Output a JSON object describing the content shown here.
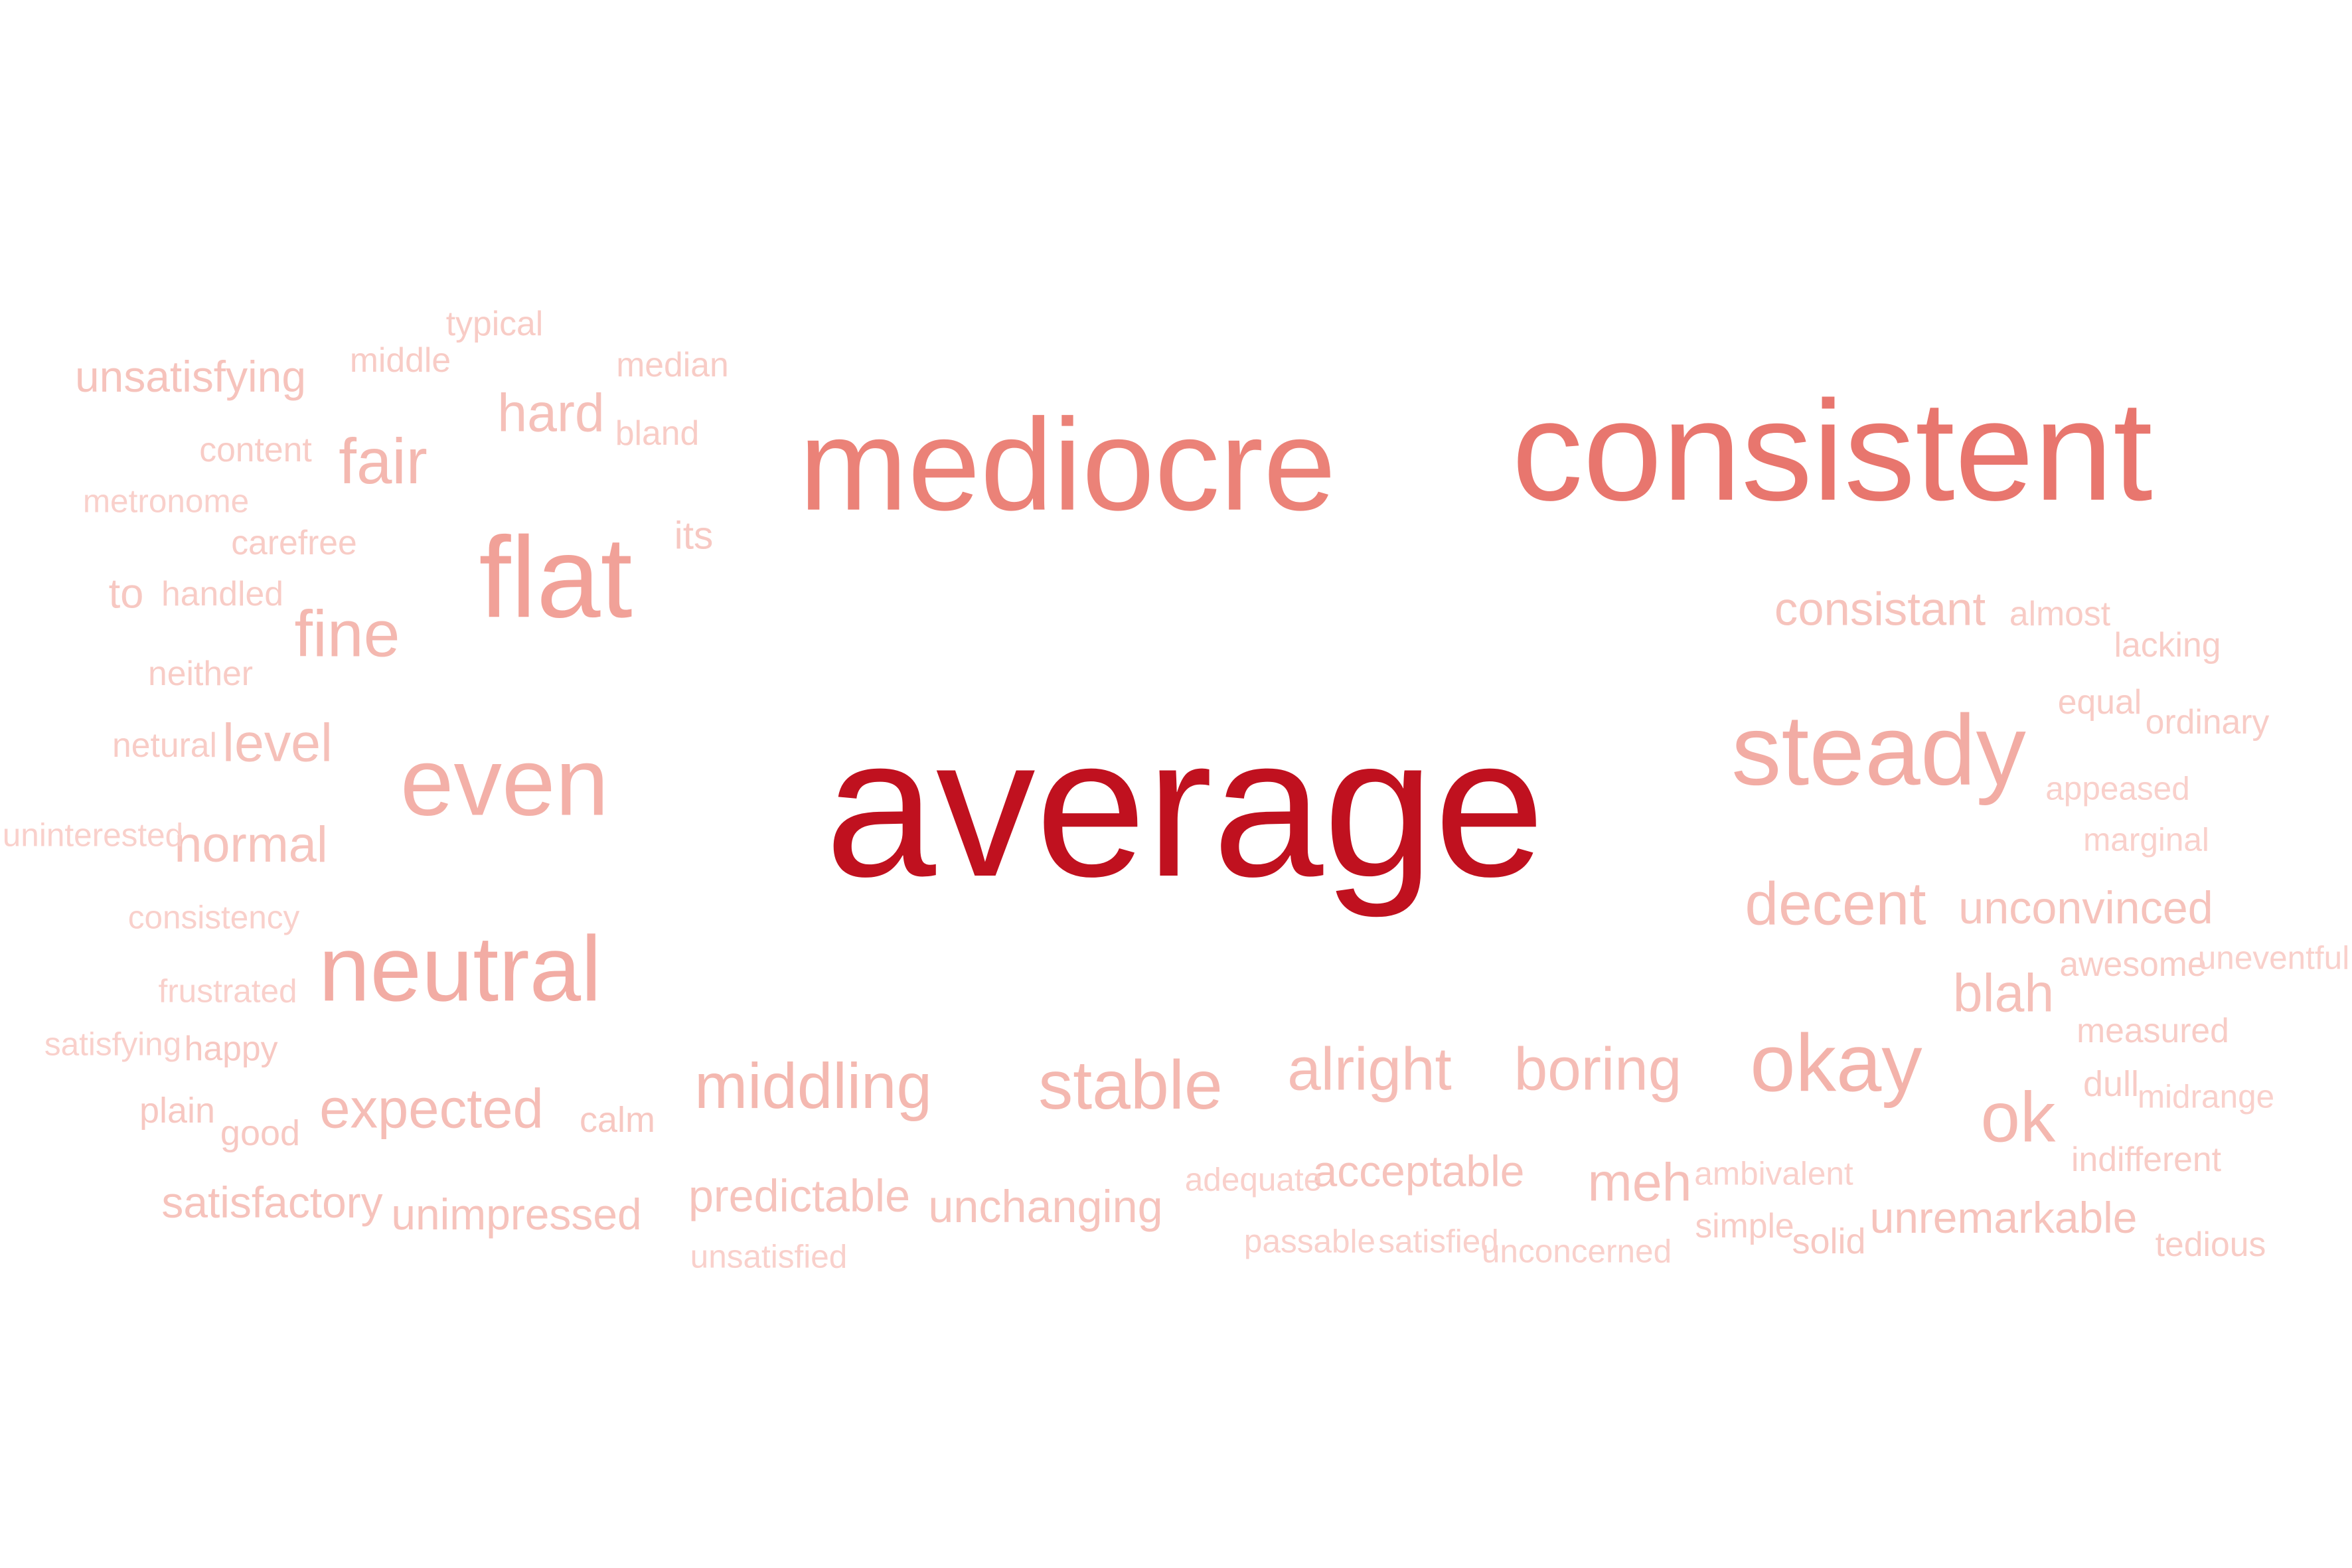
{
  "words": [
    {
      "text": "average",
      "weight": 1.0,
      "color": "#c0111f"
    },
    {
      "text": "consistent",
      "weight": 0.72,
      "color": "#e8766e"
    },
    {
      "text": "mediocre",
      "weight": 0.66,
      "color": "#eb8278"
    },
    {
      "text": "flat",
      "weight": 0.58,
      "color": "#f1a198"
    },
    {
      "text": "steady",
      "weight": 0.5,
      "color": "#f2aca4"
    },
    {
      "text": "even",
      "weight": 0.48,
      "color": "#f3b0a8"
    },
    {
      "text": "neutral",
      "weight": 0.46,
      "color": "#f2aca4"
    },
    {
      "text": "okay",
      "weight": 0.4,
      "color": "#f3b3ab"
    },
    {
      "text": "ok",
      "weight": 0.34,
      "color": "#f4b8b0"
    },
    {
      "text": "stable",
      "weight": 0.33,
      "color": "#f4b8b0"
    },
    {
      "text": "middling",
      "weight": 0.3,
      "color": "#f4b8b0"
    },
    {
      "text": "fine",
      "weight": 0.31,
      "color": "#f4b8b0"
    },
    {
      "text": "fair",
      "weight": 0.3,
      "color": "#f4b8b0"
    },
    {
      "text": "alright",
      "weight": 0.28,
      "color": "#f5bdb6"
    },
    {
      "text": "boring",
      "weight": 0.28,
      "color": "#f5bdb6"
    },
    {
      "text": "decent",
      "weight": 0.28,
      "color": "#f5bdb6"
    },
    {
      "text": "blah",
      "weight": 0.24,
      "color": "#f5c0b9"
    },
    {
      "text": "expected",
      "weight": 0.25,
      "color": "#f5bdb6"
    },
    {
      "text": "level",
      "weight": 0.24,
      "color": "#f5c0b9"
    },
    {
      "text": "hard",
      "weight": 0.24,
      "color": "#f5c0b9"
    },
    {
      "text": "meh",
      "weight": 0.24,
      "color": "#f5c0b9"
    },
    {
      "text": "normal",
      "weight": 0.22,
      "color": "#f6c3bc"
    },
    {
      "text": "consistant",
      "weight": 0.2,
      "color": "#f6c3bc"
    },
    {
      "text": "unconvinced",
      "weight": 0.19,
      "color": "#f6c3bc"
    },
    {
      "text": "unsatisfying",
      "weight": 0.18,
      "color": "#f6c3bc"
    },
    {
      "text": "predictable",
      "weight": 0.19,
      "color": "#f6c3bc"
    },
    {
      "text": "unchanging",
      "weight": 0.19,
      "color": "#f6c3bc"
    },
    {
      "text": "acceptable",
      "weight": 0.18,
      "color": "#f6c3bc"
    },
    {
      "text": "unremarkable",
      "weight": 0.18,
      "color": "#f6c3bc"
    },
    {
      "text": "satisfactory",
      "weight": 0.18,
      "color": "#f6c3bc"
    },
    {
      "text": "unimpressed",
      "weight": 0.18,
      "color": "#f6c3bc"
    },
    {
      "text": "to",
      "weight": 0.17,
      "color": "#f7c8c2"
    },
    {
      "text": "its",
      "weight": 0.15,
      "color": "#f7c8c2"
    },
    {
      "text": "solid",
      "weight": 0.13,
      "color": "#f7c8c2"
    },
    {
      "text": "good",
      "weight": 0.13,
      "color": "#f7c8c2"
    },
    {
      "text": "calm",
      "weight": 0.13,
      "color": "#f7c8c2"
    },
    {
      "text": "plain",
      "weight": 0.13,
      "color": "#f7c8c2"
    },
    {
      "text": "happy",
      "weight": 0.12,
      "color": "#f7c8c2"
    },
    {
      "text": "content",
      "weight": 0.12,
      "color": "#f8ccc6"
    },
    {
      "text": "typical",
      "weight": 0.12,
      "color": "#f8ccc6"
    },
    {
      "text": "median",
      "weight": 0.12,
      "color": "#f8ccc6"
    },
    {
      "text": "middle",
      "weight": 0.12,
      "color": "#f8ccc6"
    },
    {
      "text": "bland",
      "weight": 0.12,
      "color": "#f8ccc6"
    },
    {
      "text": "carefree",
      "weight": 0.12,
      "color": "#f8ccc6"
    },
    {
      "text": "handled",
      "weight": 0.12,
      "color": "#f8ccc6"
    },
    {
      "text": "neither",
      "weight": 0.12,
      "color": "#f8ccc6"
    },
    {
      "text": "netural",
      "weight": 0.12,
      "color": "#f8ccc6"
    },
    {
      "text": "almost",
      "weight": 0.12,
      "color": "#f8ccc6"
    },
    {
      "text": "lacking",
      "weight": 0.12,
      "color": "#f8ccc6"
    },
    {
      "text": "equal",
      "weight": 0.12,
      "color": "#f8ccc6"
    },
    {
      "text": "ordinary",
      "weight": 0.12,
      "color": "#f8ccc6"
    },
    {
      "text": "awesome",
      "weight": 0.12,
      "color": "#f8ccc6"
    },
    {
      "text": "measured",
      "weight": 0.12,
      "color": "#f8ccc6"
    },
    {
      "text": "dull",
      "weight": 0.13,
      "color": "#f8ccc6"
    },
    {
      "text": "indifferent",
      "weight": 0.12,
      "color": "#f8ccc6"
    },
    {
      "text": "simple",
      "weight": 0.12,
      "color": "#f8ccc6"
    },
    {
      "text": "tedious",
      "weight": 0.12,
      "color": "#f8ccc6"
    },
    {
      "text": "frustrated",
      "weight": 0.11,
      "color": "#f9d0cb"
    },
    {
      "text": "satisfying",
      "weight": 0.11,
      "color": "#f9d0cb"
    },
    {
      "text": "metronome",
      "weight": 0.11,
      "color": "#f9d0cb"
    },
    {
      "text": "uninterested",
      "weight": 0.11,
      "color": "#f9d0cb"
    },
    {
      "text": "consistency",
      "weight": 0.11,
      "color": "#f9d0cb"
    },
    {
      "text": "appeased",
      "weight": 0.11,
      "color": "#f9d0cb"
    },
    {
      "text": "marginal",
      "weight": 0.11,
      "color": "#f9d0cb"
    },
    {
      "text": "uneventful",
      "weight": 0.11,
      "color": "#f9d0cb"
    },
    {
      "text": "midrange",
      "weight": 0.11,
      "color": "#f9d0cb"
    },
    {
      "text": "adequate",
      "weight": 0.11,
      "color": "#f9d0cb"
    },
    {
      "text": "ambivalent",
      "weight": 0.11,
      "color": "#f9d0cb"
    },
    {
      "text": "passable",
      "weight": 0.11,
      "color": "#f9d0cb"
    },
    {
      "text": "satisfied",
      "weight": 0.11,
      "color": "#f9d0cb"
    },
    {
      "text": "unconcerned",
      "weight": 0.11,
      "color": "#f9d0cb"
    },
    {
      "text": "unsatisfied",
      "weight": 0.11,
      "color": "#f9d0cb"
    }
  ]
}
